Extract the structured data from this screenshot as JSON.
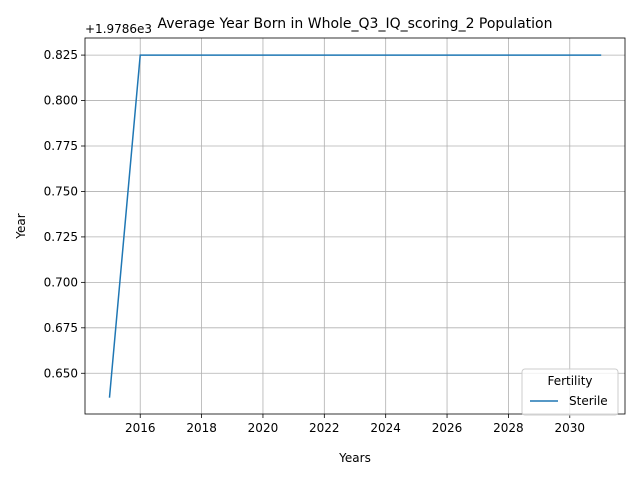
{
  "chart_data": {
    "type": "line",
    "title": "Average Year Born in Whole_Q3_IQ_scoring_2 Population",
    "xlabel": "Years",
    "ylabel": "Year",
    "y_offset_label": "+1.9786e3",
    "x": [
      2015,
      2016,
      2017,
      2018,
      2019,
      2020,
      2021,
      2022,
      2023,
      2024,
      2025,
      2026,
      2027,
      2028,
      2029,
      2030,
      2031
    ],
    "series": [
      {
        "name": "Sterile",
        "color": "#1f77b4",
        "values": [
          0.637,
          0.825,
          0.825,
          0.825,
          0.825,
          0.825,
          0.825,
          0.825,
          0.825,
          0.825,
          0.825,
          0.825,
          0.825,
          0.825,
          0.825,
          0.825,
          0.825
        ]
      }
    ],
    "xlim": [
      2014.2,
      2031.8
    ],
    "ylim": [
      0.6276,
      0.8344
    ],
    "x_ticks": [
      2016,
      2018,
      2020,
      2022,
      2024,
      2026,
      2028,
      2030
    ],
    "y_ticks": [
      0.65,
      0.675,
      0.7,
      0.725,
      0.75,
      0.775,
      0.8,
      0.825
    ],
    "y_tick_labels": [
      "0.650",
      "0.675",
      "0.700",
      "0.725",
      "0.750",
      "0.775",
      "0.800",
      "0.825"
    ],
    "grid": true,
    "legend": {
      "title": "Fertility",
      "position": "lower-right"
    }
  }
}
